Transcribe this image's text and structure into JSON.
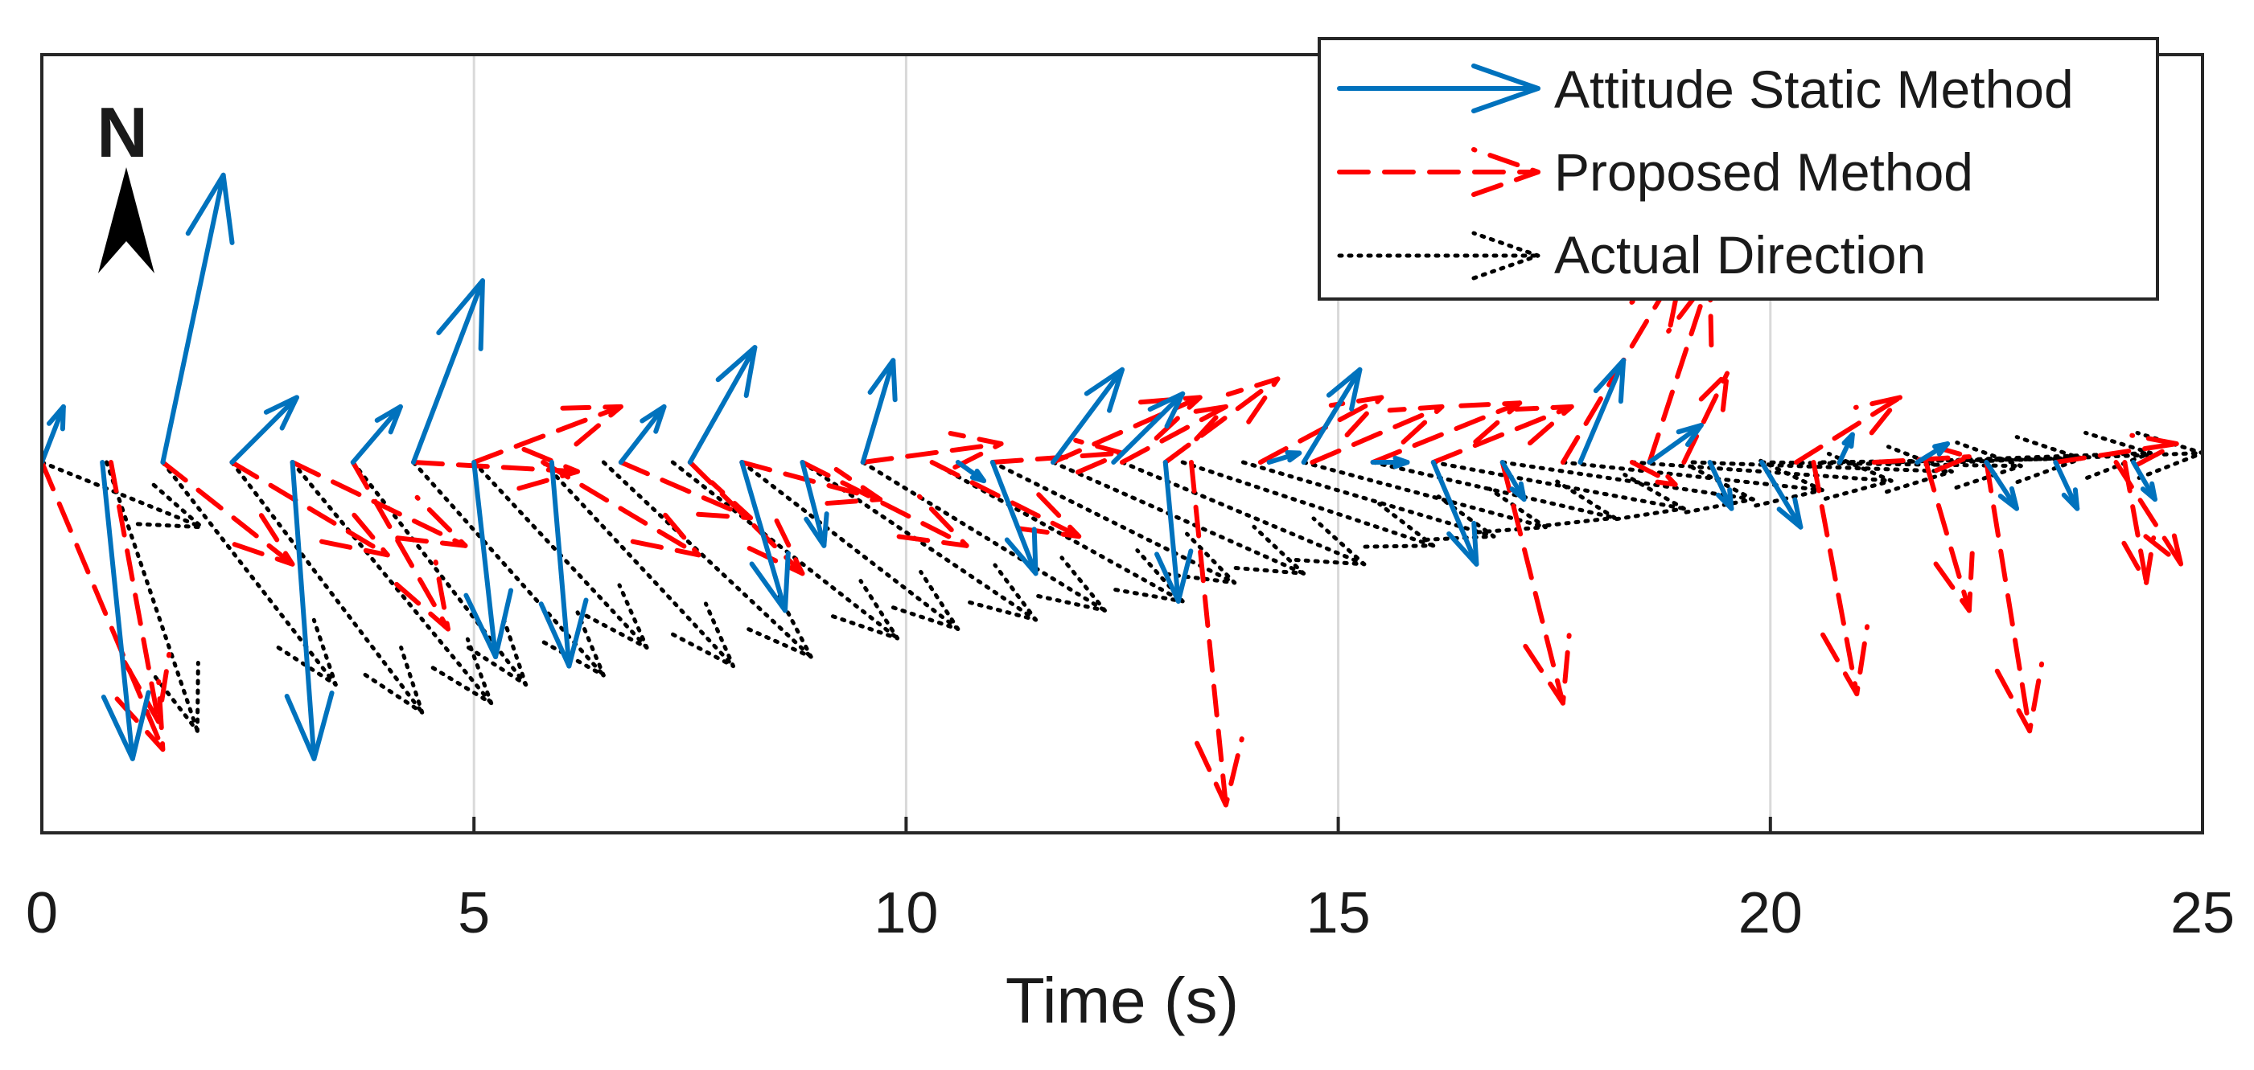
{
  "chart_data": {
    "type": "quiver",
    "title": "",
    "xlabel": "Time (s)",
    "ylabel": "",
    "xlim": [
      0,
      25
    ],
    "ylim": [
      -2,
      2.2
    ],
    "xticks": [
      0,
      5,
      10,
      15,
      20,
      25
    ],
    "grid": "x",
    "compass": "N",
    "legend": {
      "position": "top-right",
      "entries": [
        "Attitude Static Method",
        "Proposed Method",
        "Actual Direction"
      ]
    },
    "series": [
      {
        "name": "Attitude Static Method",
        "style": "solid",
        "color": "#0072BD",
        "arrows": [
          {
            "t": 0.0,
            "u": 0.25,
            "v": 0.3
          },
          {
            "t": 0.7,
            "u": 0.35,
            "v": -1.6
          },
          {
            "t": 1.4,
            "u": 0.7,
            "v": 1.55
          },
          {
            "t": 2.2,
            "u": 0.75,
            "v": 0.35
          },
          {
            "t": 2.9,
            "u": 0.25,
            "v": -1.6
          },
          {
            "t": 3.6,
            "u": 0.55,
            "v": 0.3
          },
          {
            "t": 4.3,
            "u": 0.8,
            "v": 0.98
          },
          {
            "t": 5.0,
            "u": 0.25,
            "v": -1.05
          },
          {
            "t": 5.9,
            "u": 0.2,
            "v": -1.1
          },
          {
            "t": 6.7,
            "u": 0.5,
            "v": 0.3
          },
          {
            "t": 7.5,
            "u": 0.75,
            "v": 0.62
          },
          {
            "t": 8.1,
            "u": 0.5,
            "v": -0.8
          },
          {
            "t": 8.8,
            "u": 0.25,
            "v": -0.45
          },
          {
            "t": 9.5,
            "u": 0.35,
            "v": 0.55
          },
          {
            "t": 10.6,
            "u": 0.3,
            "v": -0.1
          },
          {
            "t": 11.0,
            "u": 0.5,
            "v": -0.6
          },
          {
            "t": 11.7,
            "u": 0.8,
            "v": 0.5
          },
          {
            "t": 12.4,
            "u": 0.8,
            "v": 0.37
          },
          {
            "t": 13.0,
            "u": 0.15,
            "v": -0.75
          },
          {
            "t": 14.2,
            "u": 0.35,
            "v": 0.05
          },
          {
            "t": 14.6,
            "u": 0.65,
            "v": 0.5
          },
          {
            "t": 15.4,
            "u": 0.4,
            "v": 0.0
          },
          {
            "t": 16.1,
            "u": 0.5,
            "v": -0.55
          },
          {
            "t": 16.9,
            "u": 0.25,
            "v": -0.2
          },
          {
            "t": 17.8,
            "u": 0.5,
            "v": 0.55
          },
          {
            "t": 18.6,
            "u": 0.6,
            "v": 0.2
          },
          {
            "t": 19.3,
            "u": 0.25,
            "v": -0.25
          },
          {
            "t": 19.9,
            "u": 0.45,
            "v": -0.35
          },
          {
            "t": 20.8,
            "u": 0.15,
            "v": 0.15
          },
          {
            "t": 21.7,
            "u": 0.35,
            "v": 0.1
          },
          {
            "t": 22.5,
            "u": 0.35,
            "v": -0.25
          },
          {
            "t": 23.3,
            "u": 0.25,
            "v": -0.25
          },
          {
            "t": 24.2,
            "u": 0.25,
            "v": -0.2
          }
        ]
      },
      {
        "name": "Proposed Method",
        "style": "dashed",
        "color": "#FF0000",
        "arrows": [
          {
            "t": 0.0,
            "u": 1.4,
            "v": -1.55
          },
          {
            "t": 0.8,
            "u": 0.55,
            "v": -1.4
          },
          {
            "t": 1.4,
            "u": 1.5,
            "v": -0.55
          },
          {
            "t": 2.2,
            "u": 1.8,
            "v": -0.5
          },
          {
            "t": 2.9,
            "u": 2.0,
            "v": -0.45
          },
          {
            "t": 3.6,
            "u": 1.1,
            "v": -0.9
          },
          {
            "t": 4.3,
            "u": 1.9,
            "v": -0.05
          },
          {
            "t": 5.0,
            "u": 1.7,
            "v": 0.3
          },
          {
            "t": 5.8,
            "u": 1.8,
            "v": -0.5
          },
          {
            "t": 6.7,
            "u": 1.5,
            "v": -0.3
          },
          {
            "t": 7.5,
            "u": 1.3,
            "v": -0.6
          },
          {
            "t": 8.1,
            "u": 1.6,
            "v": -0.2
          },
          {
            "t": 8.8,
            "u": 1.9,
            "v": -0.45
          },
          {
            "t": 9.5,
            "u": 1.6,
            "v": 0.1
          },
          {
            "t": 10.3,
            "u": 1.7,
            "v": -0.4
          },
          {
            "t": 11.0,
            "u": 1.5,
            "v": 0.05
          },
          {
            "t": 11.7,
            "u": 1.7,
            "v": 0.35
          },
          {
            "t": 12.5,
            "u": 1.2,
            "v": 0.3
          },
          {
            "t": 13.0,
            "u": 1.3,
            "v": 0.45
          },
          {
            "t": 13.3,
            "u": 0.4,
            "v": -1.85
          },
          {
            "t": 14.1,
            "u": 1.4,
            "v": 0.35
          },
          {
            "t": 14.7,
            "u": 1.5,
            "v": 0.3
          },
          {
            "t": 15.4,
            "u": 1.7,
            "v": 0.32
          },
          {
            "t": 16.1,
            "u": 1.6,
            "v": 0.3
          },
          {
            "t": 16.9,
            "u": 0.7,
            "v": -1.3
          },
          {
            "t": 17.6,
            "u": 1.4,
            "v": 1.1
          },
          {
            "t": 18.6,
            "u": 0.7,
            "v": 1.0
          },
          {
            "t": 18.4,
            "u": 0.5,
            "v": -0.12
          },
          {
            "t": 19.0,
            "u": 0.5,
            "v": 0.48
          },
          {
            "t": 20.3,
            "u": 1.2,
            "v": 0.35
          },
          {
            "t": 20.5,
            "u": 0.5,
            "v": -1.25
          },
          {
            "t": 21.2,
            "u": 1.1,
            "v": 0.03
          },
          {
            "t": 21.8,
            "u": 0.5,
            "v": -0.8
          },
          {
            "t": 22.5,
            "u": 0.5,
            "v": -1.45
          },
          {
            "t": 23.3,
            "u": 1.4,
            "v": 0.1
          },
          {
            "t": 24.1,
            "u": 0.25,
            "v": -0.65
          },
          {
            "t": 24.0,
            "u": 0.75,
            "v": -0.55
          }
        ]
      },
      {
        "name": "Actual Direction",
        "style": "dotted",
        "color": "#000000",
        "arrows": [
          {
            "t": 0.0,
            "u": 1.85,
            "v": -0.35
          },
          {
            "t": 0.75,
            "u": 1.05,
            "v": -1.45
          },
          {
            "t": 1.4,
            "u": 2.0,
            "v": -1.2
          },
          {
            "t": 2.2,
            "u": 2.2,
            "v": -1.35
          },
          {
            "t": 2.9,
            "u": 2.3,
            "v": -1.3
          },
          {
            "t": 3.6,
            "u": 2.0,
            "v": -1.2
          },
          {
            "t": 4.3,
            "u": 2.2,
            "v": -1.15
          },
          {
            "t": 5.0,
            "u": 2.0,
            "v": -1.0
          },
          {
            "t": 5.8,
            "u": 2.2,
            "v": -1.1
          },
          {
            "t": 6.5,
            "u": 2.4,
            "v": -1.05
          },
          {
            "t": 7.3,
            "u": 2.6,
            "v": -0.95
          },
          {
            "t": 8.1,
            "u": 2.5,
            "v": -0.9
          },
          {
            "t": 8.8,
            "u": 2.7,
            "v": -0.85
          },
          {
            "t": 9.5,
            "u": 2.8,
            "v": -0.8
          },
          {
            "t": 10.3,
            "u": 2.9,
            "v": -0.75
          },
          {
            "t": 11.0,
            "u": 2.8,
            "v": -0.65
          },
          {
            "t": 11.7,
            "u": 2.9,
            "v": -0.6
          },
          {
            "t": 12.5,
            "u": 2.8,
            "v": -0.55
          },
          {
            "t": 13.2,
            "u": 2.9,
            "v": -0.45
          },
          {
            "t": 13.9,
            "u": 2.9,
            "v": -0.4
          },
          {
            "t": 14.6,
            "u": 2.8,
            "v": -0.35
          },
          {
            "t": 15.4,
            "u": 2.8,
            "v": -0.3
          },
          {
            "t": 16.1,
            "u": 2.9,
            "v": -0.25
          },
          {
            "t": 16.9,
            "u": 2.9,
            "v": -0.2
          },
          {
            "t": 17.6,
            "u": 3.0,
            "v": -0.15
          },
          {
            "t": 18.4,
            "u": 3.0,
            "v": -0.1
          },
          {
            "t": 19.1,
            "u": 3.0,
            "v": -0.05
          },
          {
            "t": 19.9,
            "u": 3.0,
            "v": -0.02
          },
          {
            "t": 20.6,
            "u": 3.0,
            "v": 0.02
          },
          {
            "t": 21.4,
            "u": 3.0,
            "v": 0.05
          },
          {
            "t": 22.1,
            "u": 2.9,
            "v": 0.05
          }
        ]
      }
    ]
  }
}
